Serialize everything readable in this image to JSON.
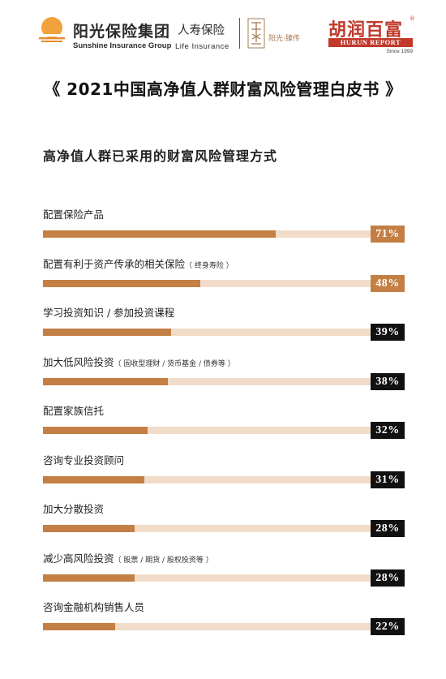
{
  "header": {
    "brand_cn": "阳光保险集团",
    "brand_en": "Sunshine Insurance Group",
    "life_cn": "人寿保险",
    "life_en": "Life Insurance",
    "seal_text": "阳光·臻传",
    "hurun_cn": "胡润百富",
    "hurun_reg": "®",
    "hurun_en": "HURUN REPORT",
    "hurun_since": "Since 1999"
  },
  "report_title": "《 2021中国高净值人群财富风险管理白皮书 》",
  "colors": {
    "bar_fill": "#c47f45",
    "bar_track": "#f1dcc9",
    "badge_high": "#c47f45",
    "badge_low": "#111111",
    "hurun_red": "#c0392b"
  },
  "chart_data": {
    "type": "bar",
    "orientation": "horizontal",
    "title": "高净值人群已采用的财富风险管理方式",
    "xlim": [
      0,
      100
    ],
    "unit": "%",
    "categories": [
      "配置保险产品",
      "配置有利于资产传承的相关保险",
      "学习投资知识 / 参加投资课程",
      "加大低风险投资",
      "配置家族信托",
      "咨询专业投资顾问",
      "加大分散投资",
      "减少高风险投资",
      "咨询金融机构销售人员"
    ],
    "notes": [
      "",
      "（ 终身寿险 ）",
      "",
      "（ 固收型理财 / 货币基金 / 债券等 ）",
      "",
      "",
      "",
      "（ 股票 / 期货 / 股权投资等 ）",
      ""
    ],
    "values": [
      71,
      48,
      39,
      38,
      32,
      31,
      28,
      28,
      22
    ],
    "value_labels": [
      "71%",
      "48%",
      "39%",
      "38%",
      "32%",
      "31%",
      "28%",
      "28%",
      "22%"
    ]
  }
}
